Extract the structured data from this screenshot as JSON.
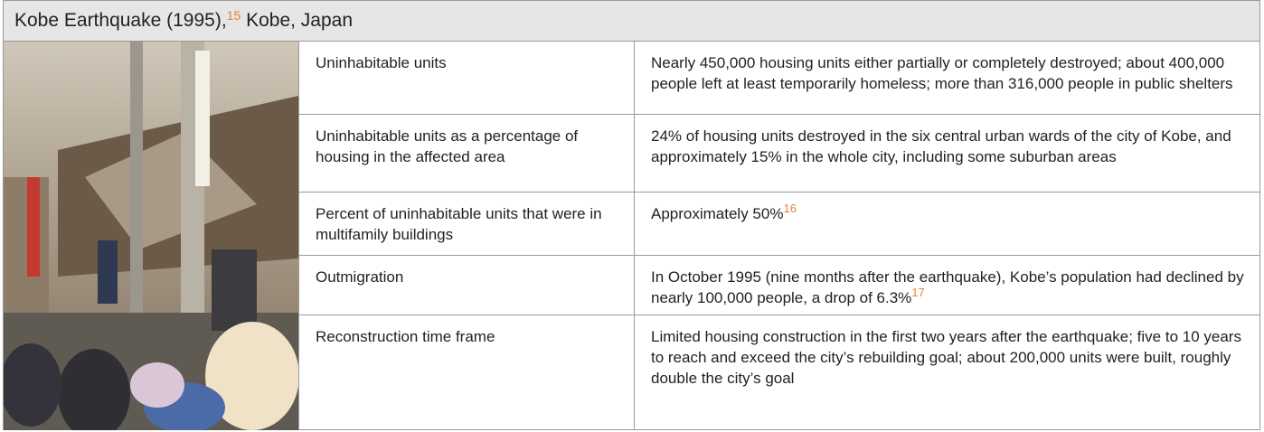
{
  "header": {
    "title": "Kobe Earthquake (1995),",
    "footnote": "15",
    "location": "Kobe, Japan"
  },
  "table": {
    "rows": [
      {
        "label": "Uninhabitable units",
        "value": "Nearly 450,000 housing units either partially or completely destroyed; about 400,000 people left at least temporarily homeless; more than 316,000 people in public shelters"
      },
      {
        "label": "Uninhabitable units as a percentage of housing in the affected area",
        "value": "24% of housing units destroyed in the six central urban wards of the city of Kobe, and approximately 15% in the whole city, including some suburban areas"
      },
      {
        "label": "Percent of uninhabitable units that were in multifamily buildings",
        "value": "Approximately 50%",
        "footnote": "16"
      },
      {
        "label": "Outmigration",
        "value": "In October 1995 (nine months after the earthquake), Kobe’s population had declined by nearly 100,000 people, a drop of 6.3%",
        "footnote": "17"
      },
      {
        "label": "Reconstruction time frame",
        "value": "Limited housing construction in the first two years after the earthquake; five to 10 years to reach and exceed the city’s rebuilding goal; about 200,000 units were built, roughly double the city’s goal"
      }
    ]
  }
}
